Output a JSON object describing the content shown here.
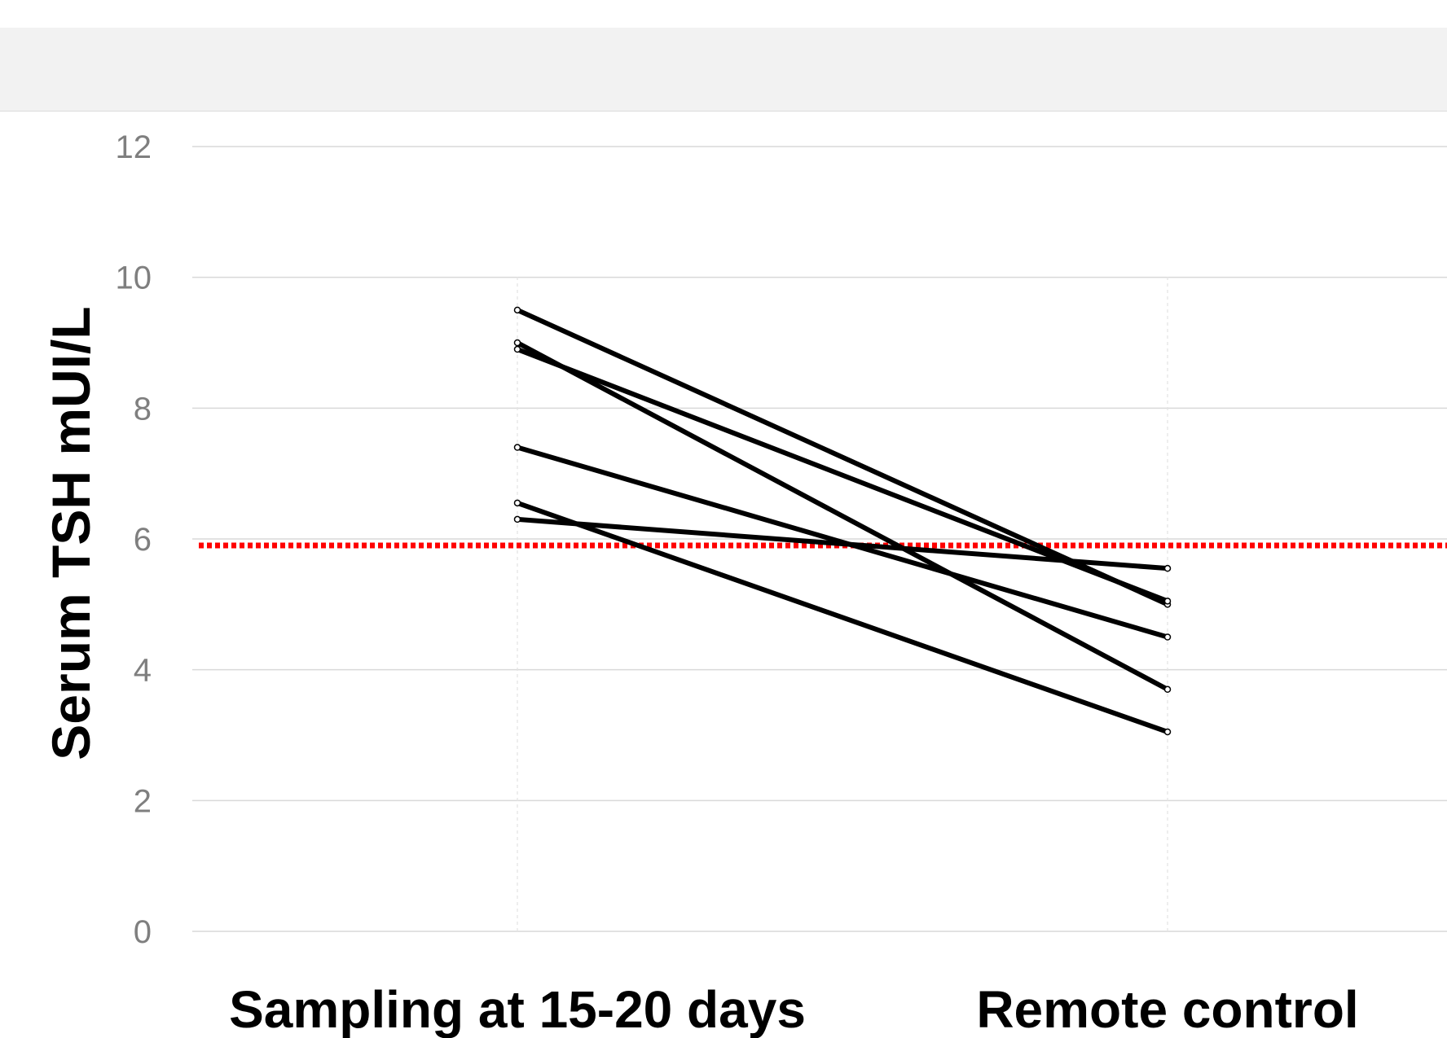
{
  "chart_data": {
    "type": "line",
    "title": "",
    "xlabel": "",
    "ylabel": "Serum TSH mUI/L",
    "categories": [
      "Sampling at 15-20 days",
      "Remote control"
    ],
    "ylim": [
      0,
      12
    ],
    "yticks": [
      0,
      2,
      4,
      6,
      8,
      10,
      12
    ],
    "grid": true,
    "legend": "none",
    "series": [
      {
        "values": [
          9.5,
          5.0
        ],
        "color": "#000000"
      },
      {
        "values": [
          9.0,
          3.7
        ],
        "color": "#000000"
      },
      {
        "values": [
          8.9,
          5.05
        ],
        "color": "#000000"
      },
      {
        "values": [
          7.4,
          4.5
        ],
        "color": "#000000"
      },
      {
        "values": [
          6.55,
          3.05
        ],
        "color": "#000000"
      },
      {
        "values": [
          6.3,
          5.55
        ],
        "color": "#000000"
      }
    ],
    "reference_line": {
      "y": 5.9,
      "color": "#ff0000",
      "style": "dotted"
    }
  }
}
